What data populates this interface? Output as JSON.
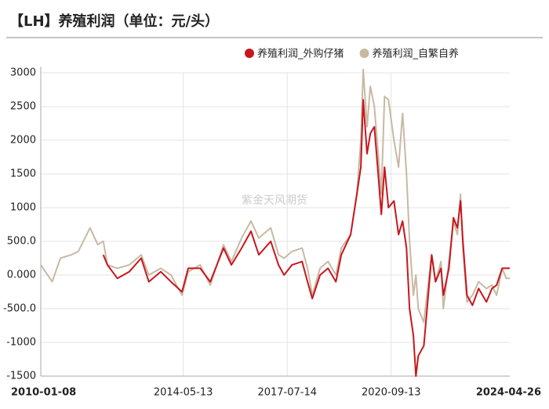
{
  "chart_data": {
    "type": "line",
    "title": "【LH】养殖利润（单位：元/头）",
    "watermark": "紫金天风期货",
    "x": [
      "2010-01-08",
      "2010-05-15",
      "2010-08-15",
      "2010-12-15",
      "2011-03-01",
      "2011-07-10",
      "2011-10-05",
      "2011-12-05",
      "2012-01-20",
      "2012-05-10",
      "2012-09-20",
      "2013-01-30",
      "2013-04-25",
      "2013-09-05",
      "2013-12-28",
      "2014-04-30",
      "2014-07-08",
      "2014-11-17",
      "2015-03-10",
      "2015-08-05",
      "2015-10-31",
      "2016-02-22",
      "2016-06-05",
      "2016-09-01",
      "2017-01-11",
      "2017-04-08",
      "2017-06-09",
      "2017-09-05",
      "2017-12-27",
      "2018-02-25",
      "2018-04-19",
      "2018-07-15",
      "2018-10-11",
      "2019-01-07",
      "2019-03-08",
      "2019-06-20",
      "2019-08-28",
      "2019-10-12",
      "2019-11-07",
      "2019-12-20",
      "2020-01-25",
      "2020-03-10",
      "2020-04-22",
      "2020-05-27",
      "2020-07-01",
      "2020-08-14",
      "2020-10-14",
      "2020-12-05",
      "2021-01-18",
      "2021-03-03",
      "2021-04-06",
      "2021-05-19",
      "2021-06-16",
      "2021-07-12",
      "2021-09-12",
      "2021-10-25",
      "2021-12-08",
      "2022-01-20",
      "2022-03-22",
      "2022-04-17",
      "2022-06-18",
      "2022-08-08",
      "2022-09-21",
      "2022-10-26",
      "2022-11-21",
      "2023-01-05",
      "2023-03-07",
      "2023-05-15",
      "2023-08-10",
      "2023-10-11",
      "2023-12-01",
      "2024-02-01",
      "2024-03-17",
      "2024-04-26"
    ],
    "series": [
      {
        "name": "养殖利润_外购仔猪",
        "color": "#c8161d",
        "values": [
          null,
          null,
          null,
          null,
          null,
          null,
          null,
          300,
          150,
          -50,
          50,
          250,
          -100,
          50,
          -100,
          -250,
          100,
          100,
          -100,
          400,
          150,
          400,
          650,
          300,
          500,
          150,
          0,
          150,
          200,
          -100,
          -350,
          0,
          100,
          -100,
          300,
          600,
          1200,
          1600,
          2600,
          1800,
          2100,
          2200,
          1500,
          900,
          1600,
          1000,
          1100,
          600,
          800,
          400,
          -500,
          -900,
          -1500,
          -1200,
          -1050,
          -400,
          300,
          -100,
          100,
          -300,
          100,
          850,
          700,
          1100,
          500,
          -300,
          -450,
          -200,
          -400,
          -200,
          -150,
          100,
          100,
          100
        ]
      },
      {
        "name": "养殖利润_自繁自养",
        "color": "#c8b9a3",
        "values": [
          150,
          -100,
          250,
          300,
          350,
          700,
          450,
          500,
          150,
          100,
          150,
          300,
          0,
          100,
          0,
          -300,
          50,
          150,
          -150,
          450,
          200,
          550,
          800,
          550,
          700,
          300,
          250,
          350,
          400,
          100,
          -300,
          100,
          200,
          0,
          400,
          600,
          1200,
          2000,
          3050,
          2200,
          2800,
          2500,
          1800,
          1200,
          2650,
          2600,
          2000,
          1600,
          2400,
          1500,
          500,
          -300,
          0,
          -500,
          -700,
          -200,
          300,
          -100,
          200,
          -500,
          200,
          800,
          600,
          1200,
          400,
          -400,
          -300,
          -100,
          -200,
          -150,
          -300,
          100,
          -50,
          -50
        ]
      }
    ],
    "xlim": [
      "2010-01-08",
      "2024-04-26"
    ],
    "xticks": [
      "2010-01-08",
      "2014-05-13",
      "2017-07-14",
      "2020-09-13",
      "2024-04-26"
    ],
    "ylim": [
      -1500,
      3000
    ],
    "yticks": [
      3000,
      2500,
      2000,
      1500,
      1000,
      {
        "value": 500,
        "label": "500.0"
      },
      {
        "value": 0,
        "label": "0.000"
      },
      {
        "value": -500,
        "label": "-500.0"
      },
      -1000,
      -1500
    ],
    "grid": true,
    "legend": "top-right"
  }
}
